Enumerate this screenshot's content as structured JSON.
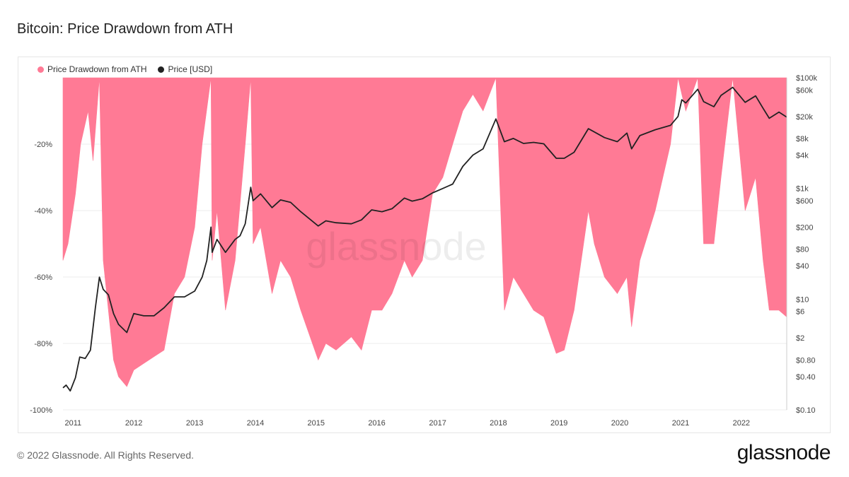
{
  "page": {
    "title": "Bitcoin: Price Drawdown from ATH",
    "copyright": "© 2022 Glassnode. All Rights Reserved.",
    "brand": "glassnode",
    "watermark": "glassnode"
  },
  "colors": {
    "drawdown": "#ff7a95",
    "price": "#222222",
    "grid": "#ececec"
  },
  "chart_data": {
    "type": "area",
    "title": "Bitcoin: Price Drawdown from ATH",
    "legend": [
      "Price Drawdown from ATH",
      "Price [USD]"
    ],
    "legend_position": "top-left",
    "x_range": [
      "2010-11-01",
      "2022-10-01"
    ],
    "x_ticks": [
      "2011",
      "2012",
      "2013",
      "2014",
      "2015",
      "2016",
      "2017",
      "2018",
      "2019",
      "2020",
      "2021",
      "2022"
    ],
    "y_left": {
      "label": "",
      "range": [
        -100,
        0
      ],
      "ticks": [
        -20,
        -40,
        -60,
        -80,
        -100
      ],
      "tick_labels": [
        "-20%",
        "-40%",
        "-60%",
        "-80%",
        "-100%"
      ]
    },
    "y_right": {
      "label": "",
      "scale": "log",
      "range": [
        0.1,
        100000
      ],
      "ticks": [
        100000,
        60000,
        20000,
        8000,
        4000,
        1000,
        600,
        200,
        80,
        40,
        10,
        6,
        2,
        0.8,
        0.4,
        0.1
      ],
      "tick_labels": [
        "$100k",
        "$60k",
        "$20k",
        "$8k",
        "$4k",
        "$1k",
        "$600",
        "$200",
        "$80",
        "$40",
        "$10",
        "$6",
        "$2",
        "$0.80",
        "$0.40",
        "$0.10"
      ]
    },
    "grid": true,
    "series": [
      {
        "name": "Price Drawdown from ATH",
        "unit": "%",
        "x": [
          "2010-11-01",
          "2010-12-01",
          "2011-01-15",
          "2011-02-15",
          "2011-04-01",
          "2011-05-01",
          "2011-06-08",
          "2011-07-01",
          "2011-08-01",
          "2011-09-01",
          "2011-10-01",
          "2011-11-20",
          "2012-01-01",
          "2012-03-01",
          "2012-05-01",
          "2012-07-01",
          "2012-09-01",
          "2012-11-01",
          "2013-01-01",
          "2013-02-15",
          "2013-04-09",
          "2013-04-16",
          "2013-05-15",
          "2013-07-05",
          "2013-09-01",
          "2013-11-01",
          "2013-12-04",
          "2013-12-18",
          "2014-02-01",
          "2014-04-11",
          "2014-06-01",
          "2014-08-01",
          "2014-10-01",
          "2015-01-14",
          "2015-03-01",
          "2015-05-01",
          "2015-08-01",
          "2015-10-01",
          "2015-12-01",
          "2016-02-01",
          "2016-04-01",
          "2016-06-15",
          "2016-08-01",
          "2016-10-01",
          "2016-12-01",
          "2017-02-01",
          "2017-04-01",
          "2017-06-01",
          "2017-08-01",
          "2017-10-01",
          "2017-12-17",
          "2018-02-06",
          "2018-04-01",
          "2018-06-01",
          "2018-08-01",
          "2018-10-01",
          "2018-12-15",
          "2019-02-01",
          "2019-04-01",
          "2019-06-26",
          "2019-08-01",
          "2019-10-01",
          "2019-12-17",
          "2020-02-13",
          "2020-03-12",
          "2020-05-01",
          "2020-08-01",
          "2020-11-01",
          "2020-12-16",
          "2021-01-08",
          "2021-02-01",
          "2021-04-14",
          "2021-05-19",
          "2021-07-20",
          "2021-09-01",
          "2021-11-10",
          "2022-01-24",
          "2022-03-28",
          "2022-05-12",
          "2022-06-18",
          "2022-08-15",
          "2022-09-30"
        ],
        "values": [
          -55,
          -50,
          -35,
          -20,
          -10,
          -25,
          0,
          -55,
          -70,
          -85,
          -90,
          -93,
          -88,
          -86,
          -84,
          -82,
          -65,
          -60,
          -45,
          -20,
          0,
          -55,
          -40,
          -70,
          -55,
          -20,
          0,
          -50,
          -45,
          -65,
          -55,
          -60,
          -70,
          -85,
          -80,
          -82,
          -78,
          -82,
          -70,
          -70,
          -65,
          -55,
          -60,
          -55,
          -35,
          -30,
          -20,
          -10,
          -5,
          -10,
          0,
          -70,
          -60,
          -65,
          -70,
          -72,
          -83,
          -82,
          -70,
          -40,
          -50,
          -60,
          -65,
          -60,
          -75,
          -55,
          -40,
          -20,
          0,
          -5,
          -10,
          0,
          -50,
          -50,
          -30,
          0,
          -40,
          -30,
          -55,
          -70,
          -70,
          -72
        ]
      },
      {
        "name": "Price [USD]",
        "unit": "USD",
        "x": [
          "2010-11-01",
          "2010-11-20",
          "2010-12-15",
          "2011-01-15",
          "2011-02-10",
          "2011-03-15",
          "2011-04-15",
          "2011-05-15",
          "2011-06-08",
          "2011-07-01",
          "2011-08-01",
          "2011-09-01",
          "2011-10-01",
          "2011-11-20",
          "2012-01-01",
          "2012-03-01",
          "2012-05-01",
          "2012-07-01",
          "2012-09-01",
          "2012-11-01",
          "2013-01-01",
          "2013-02-15",
          "2013-03-15",
          "2013-04-09",
          "2013-04-16",
          "2013-05-15",
          "2013-07-05",
          "2013-09-01",
          "2013-10-01",
          "2013-11-01",
          "2013-12-04",
          "2013-12-18",
          "2014-02-01",
          "2014-04-11",
          "2014-06-01",
          "2014-08-01",
          "2014-10-01",
          "2015-01-14",
          "2015-03-01",
          "2015-05-01",
          "2015-08-01",
          "2015-10-01",
          "2015-12-01",
          "2016-02-01",
          "2016-04-01",
          "2016-06-15",
          "2016-08-01",
          "2016-10-01",
          "2016-12-01",
          "2017-02-01",
          "2017-04-01",
          "2017-06-01",
          "2017-08-01",
          "2017-10-01",
          "2017-12-17",
          "2018-02-06",
          "2018-04-01",
          "2018-06-01",
          "2018-08-01",
          "2018-10-01",
          "2018-12-15",
          "2019-02-01",
          "2019-04-01",
          "2019-06-26",
          "2019-08-01",
          "2019-10-01",
          "2019-12-17",
          "2020-02-13",
          "2020-03-12",
          "2020-05-01",
          "2020-08-01",
          "2020-11-01",
          "2020-12-16",
          "2021-01-08",
          "2021-02-01",
          "2021-04-14",
          "2021-05-19",
          "2021-07-20",
          "2021-09-01",
          "2021-11-10",
          "2022-01-24",
          "2022-03-28",
          "2022-05-12",
          "2022-06-18",
          "2022-08-15",
          "2022-09-30"
        ],
        "values": [
          0.25,
          0.28,
          0.22,
          0.38,
          0.9,
          0.85,
          1.2,
          7,
          25,
          15,
          12,
          5.5,
          3.5,
          2.5,
          5.5,
          5,
          5,
          7,
          11,
          11,
          14,
          25,
          50,
          200,
          70,
          120,
          70,
          120,
          140,
          230,
          1050,
          600,
          800,
          450,
          620,
          560,
          380,
          210,
          260,
          240,
          230,
          270,
          410,
          380,
          430,
          670,
          590,
          650,
          830,
          1000,
          1200,
          2500,
          4000,
          5200,
          18000,
          7000,
          8000,
          6500,
          6800,
          6400,
          3500,
          3500,
          4500,
          12000,
          10500,
          8300,
          7000,
          10000,
          5200,
          9000,
          11500,
          13800,
          20000,
          40000,
          35000,
          62000,
          37000,
          30000,
          48000,
          67000,
          36000,
          47000,
          28000,
          18500,
          24000,
          19500
        ]
      }
    ]
  }
}
